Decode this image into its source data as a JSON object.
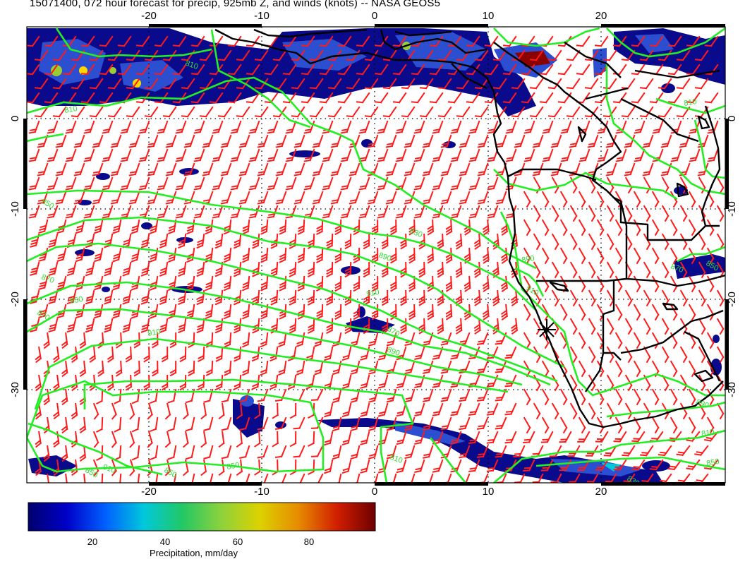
{
  "title": "15071400, 072 hour forecast for precip, 925mb Z, and winds (knots) -- NASA GEOS5",
  "map": {
    "lon_ticks": [
      "-20",
      "-10",
      "0",
      "10",
      "20"
    ],
    "lat_ticks": [
      "0",
      "-10",
      "-20",
      "-30"
    ],
    "contour_labels": [
      "810",
      "810",
      "850",
      "870",
      "850",
      "870",
      "890",
      "910",
      "870",
      "890",
      "910",
      "850",
      "830",
      "810",
      "850",
      "870",
      "890",
      "910",
      "810",
      "850",
      "830",
      "890",
      "810",
      "850",
      "910",
      "850"
    ],
    "colors": {
      "coastline": "#000000",
      "contour": "#22ee22",
      "wind_barb": "#ff0000",
      "precip_dark": "#0a0a8c",
      "precip_mid": "#2244cc",
      "precip_high": "#8b0000",
      "grid": "#000000"
    }
  },
  "colorbar": {
    "ticks": [
      "20",
      "40",
      "60",
      "80"
    ],
    "title": "Precipitation, mm/day",
    "colors": [
      "#00006e",
      "#0000c8",
      "#0060ff",
      "#00c8dc",
      "#22c864",
      "#8cd23c",
      "#dcd200",
      "#e68c00",
      "#d21e00",
      "#6e0000"
    ]
  }
}
